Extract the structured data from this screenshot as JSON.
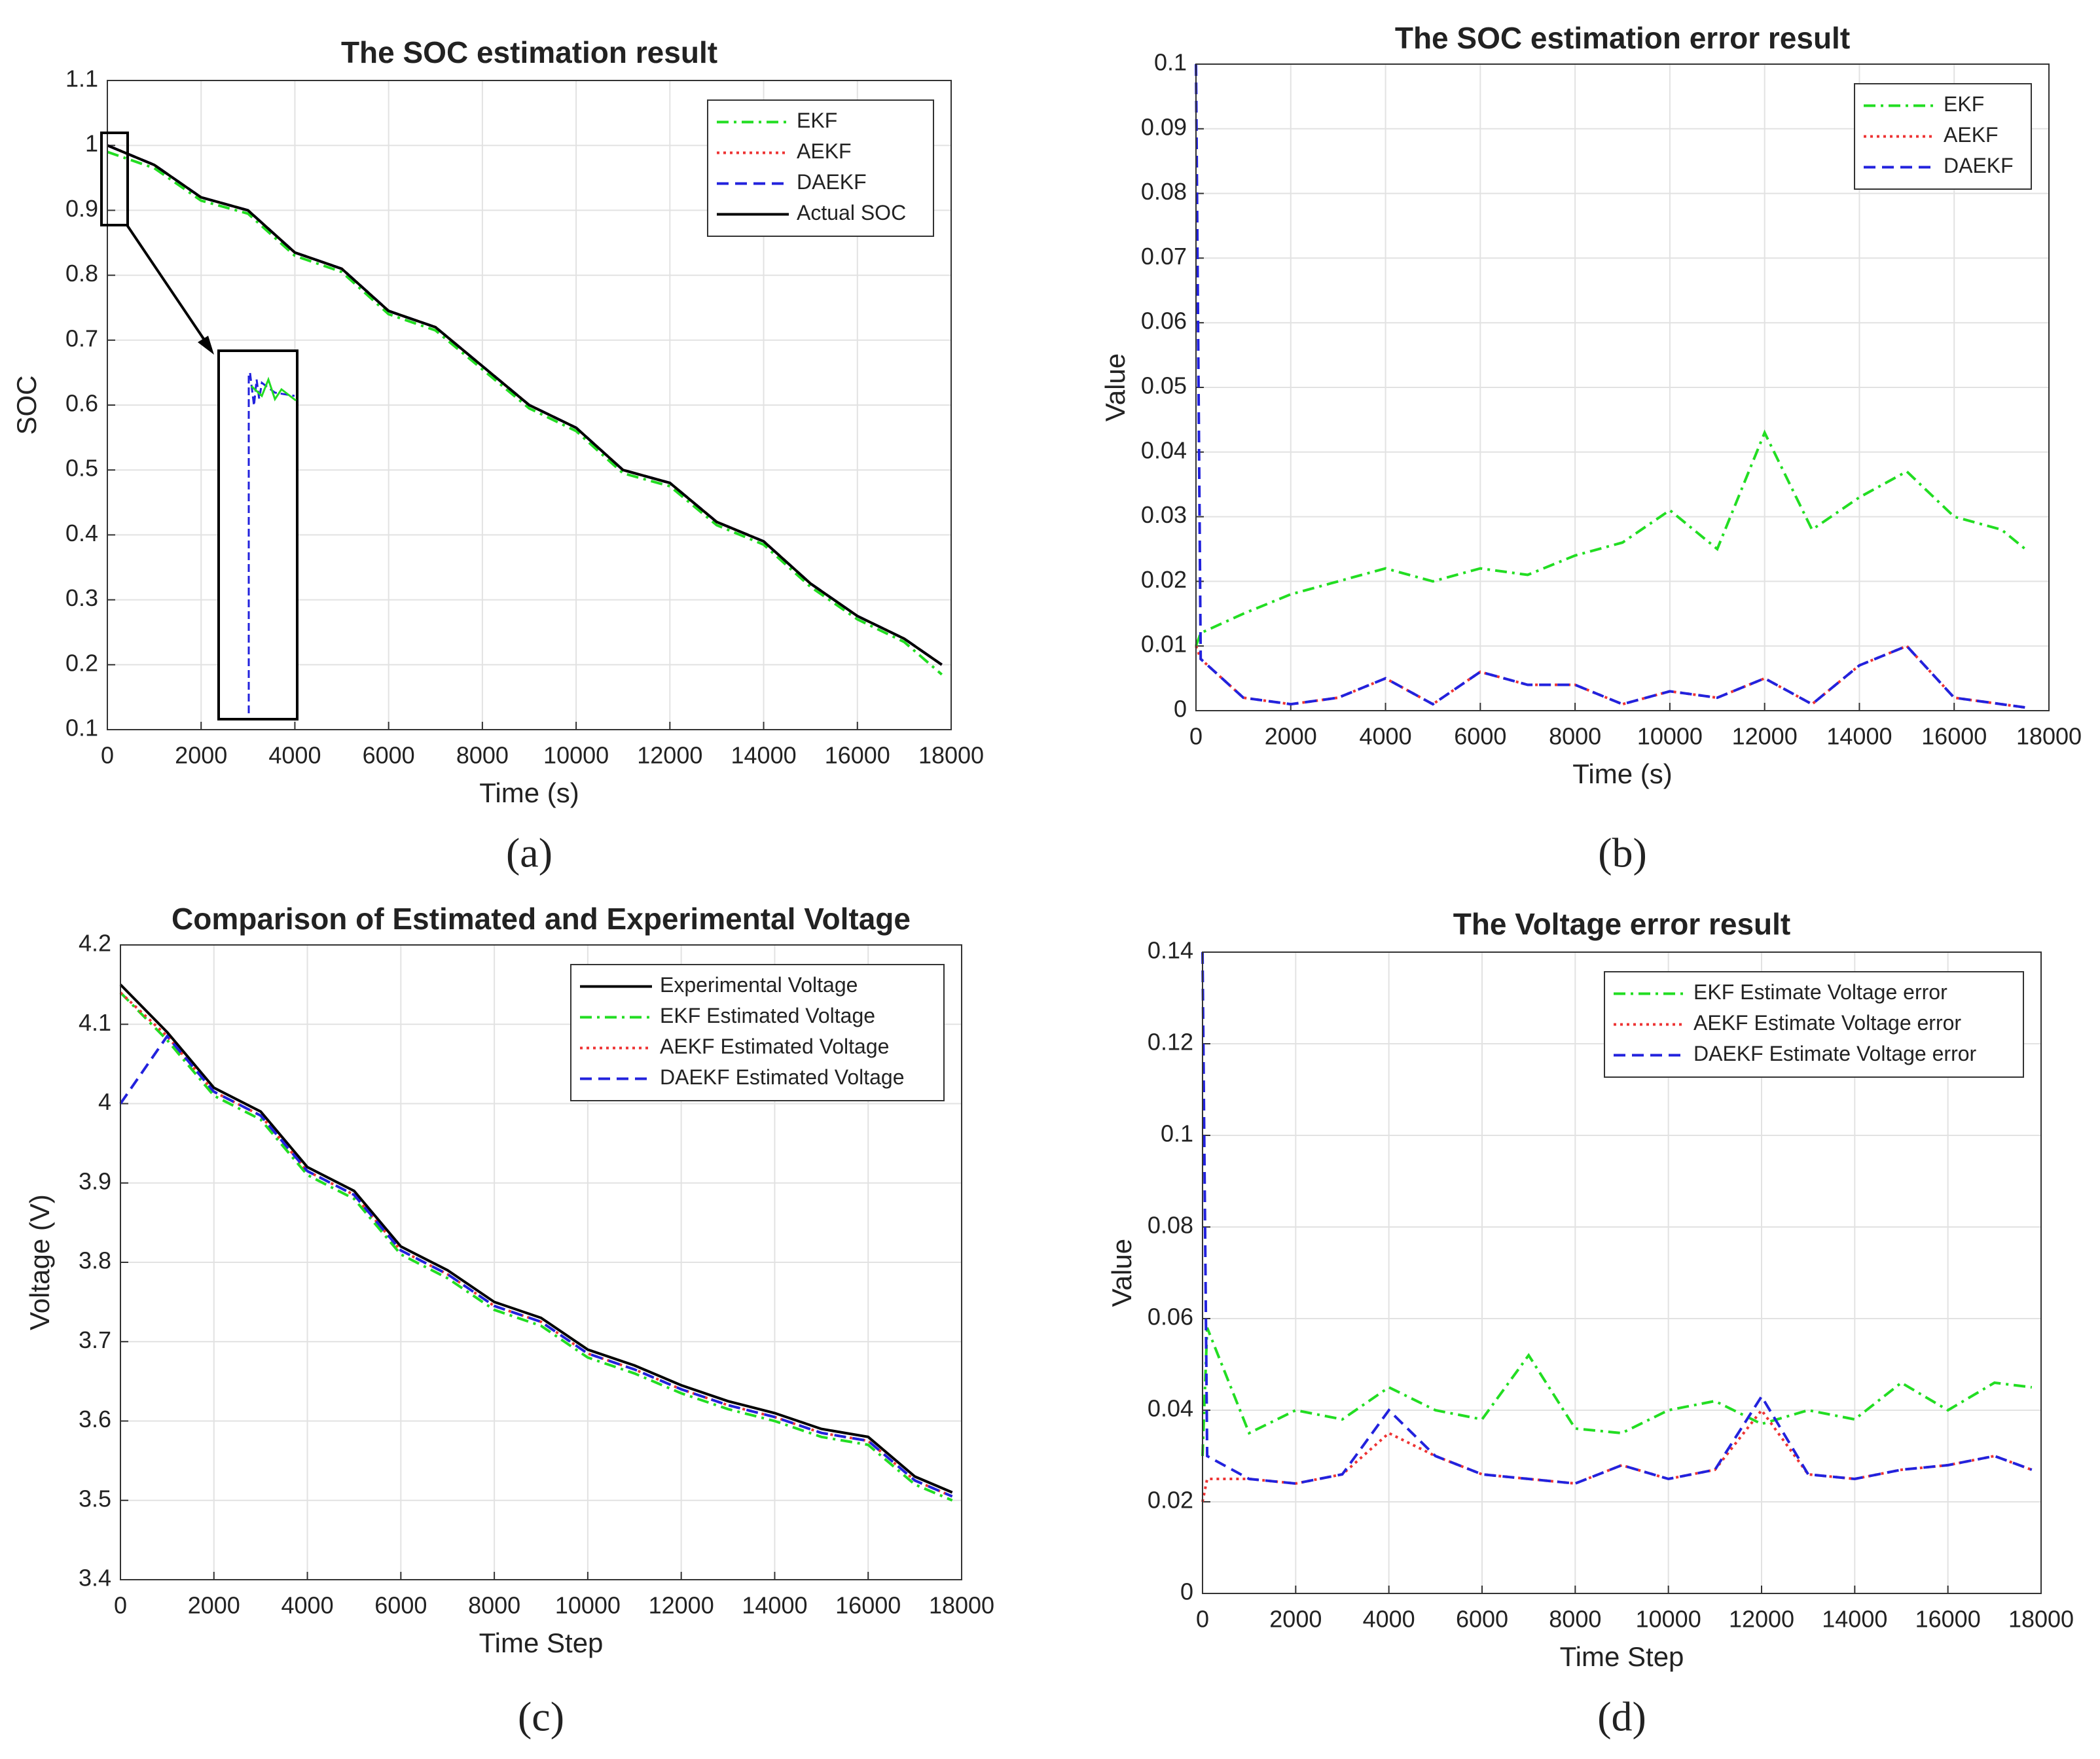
{
  "chart_data": [
    {
      "type": "line",
      "label": "(a)",
      "title": "The SOC estimation result",
      "x_label": "Time (s)",
      "y_label": "SOC",
      "x": [
        0,
        1000,
        2000,
        3000,
        4000,
        5000,
        6000,
        7000,
        8000,
        9000,
        10000,
        11000,
        12000,
        13000,
        14000,
        15000,
        16000,
        17000,
        17800
      ],
      "series": [
        {
          "name": "EKF",
          "color": "#22dd22",
          "style": "dashdot",
          "values": [
            0.99,
            0.965,
            0.915,
            0.895,
            0.83,
            0.805,
            0.74,
            0.715,
            0.655,
            0.595,
            0.56,
            0.495,
            0.475,
            0.415,
            0.385,
            0.32,
            0.27,
            0.235,
            0.185
          ]
        },
        {
          "name": "AEKF",
          "color": "#ee3333",
          "style": "dotted",
          "values": [
            1,
            0.97,
            0.92,
            0.9,
            0.835,
            0.81,
            0.745,
            0.72,
            0.66,
            0.6,
            0.565,
            0.5,
            0.48,
            0.42,
            0.39,
            0.325,
            0.275,
            0.24,
            0.2
          ]
        },
        {
          "name": "DAEKF",
          "color": "#2222dd",
          "style": "dashed",
          "values": [
            1,
            0.97,
            0.92,
            0.9,
            0.835,
            0.81,
            0.745,
            0.72,
            0.66,
            0.6,
            0.565,
            0.5,
            0.48,
            0.42,
            0.39,
            0.325,
            0.275,
            0.24,
            0.2
          ]
        },
        {
          "name": "Actual SOC",
          "color": "#000000",
          "style": "solid",
          "values": [
            1,
            0.97,
            0.92,
            0.9,
            0.835,
            0.81,
            0.745,
            0.72,
            0.66,
            0.6,
            0.565,
            0.5,
            0.48,
            0.42,
            0.39,
            0.325,
            0.275,
            0.24,
            0.2
          ]
        }
      ],
      "xlim": [
        0,
        18000
      ],
      "xticks": [
        0,
        2000,
        4000,
        6000,
        8000,
        10000,
        12000,
        14000,
        16000,
        18000
      ],
      "ylim": [
        0.1,
        1.1
      ],
      "yticks": [
        0.1,
        0.2,
        0.3,
        0.4,
        0.5,
        0.6,
        0.7,
        0.8,
        0.9,
        1,
        1.1
      ],
      "grid": true,
      "legend": "top-right"
    },
    {
      "type": "line",
      "label": "(b)",
      "title": "The SOC estimation error result",
      "x_label": "Time (s)",
      "y_label": "Value",
      "x": [
        0,
        100,
        1000,
        2000,
        3000,
        4000,
        5000,
        6000,
        7000,
        8000,
        9000,
        10000,
        11000,
        12000,
        13000,
        14000,
        15000,
        16000,
        17000,
        17500
      ],
      "series": [
        {
          "name": "EKF",
          "color": "#22dd22",
          "style": "dashdot",
          "values": [
            0.01,
            0.012,
            0.015,
            0.018,
            0.02,
            0.022,
            0.02,
            0.022,
            0.021,
            0.024,
            0.026,
            0.031,
            0.025,
            0.043,
            0.028,
            0.033,
            0.037,
            0.03,
            0.028,
            0.025
          ]
        },
        {
          "name": "AEKF",
          "color": "#ee3333",
          "style": "dotted",
          "values": [
            0.01,
            0.008,
            0.002,
            0.001,
            0.002,
            0.005,
            0.001,
            0.006,
            0.004,
            0.004,
            0.001,
            0.003,
            0.002,
            0.005,
            0.001,
            0.007,
            0.01,
            0.002,
            0.001,
            0.0005
          ]
        },
        {
          "name": "DAEKF",
          "color": "#2222dd",
          "style": "dashed",
          "values": [
            0.1,
            0.008,
            0.002,
            0.001,
            0.002,
            0.005,
            0.001,
            0.006,
            0.004,
            0.004,
            0.001,
            0.003,
            0.002,
            0.005,
            0.001,
            0.007,
            0.01,
            0.002,
            0.001,
            0.0005
          ]
        }
      ],
      "xlim": [
        0,
        18000
      ],
      "xticks": [
        0,
        2000,
        4000,
        6000,
        8000,
        10000,
        12000,
        14000,
        16000,
        18000
      ],
      "ylim": [
        0,
        0.1
      ],
      "yticks": [
        0,
        0.01,
        0.02,
        0.03,
        0.04,
        0.05,
        0.06,
        0.07,
        0.08,
        0.09,
        0.1
      ],
      "grid": true,
      "legend": "top-right"
    },
    {
      "type": "line",
      "label": "(c)",
      "title": "Comparison of Estimated and Experimental Voltage",
      "x_label": "Time Step",
      "y_label": "Voltage (V)",
      "x": [
        0,
        1000,
        2000,
        3000,
        4000,
        5000,
        6000,
        7000,
        8000,
        9000,
        10000,
        11000,
        12000,
        13000,
        14000,
        15000,
        16000,
        17000,
        17800
      ],
      "series": [
        {
          "name": "Experimental Voltage",
          "color": "#000000",
          "style": "solid",
          "values": [
            4.15,
            4.09,
            4.02,
            3.99,
            3.92,
            3.89,
            3.82,
            3.79,
            3.75,
            3.73,
            3.69,
            3.67,
            3.645,
            3.625,
            3.61,
            3.59,
            3.58,
            3.53,
            3.51
          ]
        },
        {
          "name": "EKF Estimated Voltage",
          "color": "#22dd22",
          "style": "dashdot",
          "values": [
            4.14,
            4.08,
            4.01,
            3.98,
            3.91,
            3.88,
            3.81,
            3.78,
            3.74,
            3.72,
            3.68,
            3.66,
            3.635,
            3.615,
            3.6,
            3.58,
            3.57,
            3.52,
            3.5
          ]
        },
        {
          "name": "AEKF Estimated Voltage",
          "color": "#ee3333",
          "style": "dotted",
          "values": [
            4.14,
            4.085,
            4.015,
            3.985,
            3.915,
            3.885,
            3.815,
            3.785,
            3.745,
            3.725,
            3.685,
            3.665,
            3.64,
            3.62,
            3.605,
            3.585,
            3.575,
            3.525,
            3.505
          ]
        },
        {
          "name": "DAEKF Estimated Voltage",
          "color": "#2222dd",
          "style": "dashed",
          "values": [
            4,
            4.085,
            4.015,
            3.985,
            3.915,
            3.885,
            3.815,
            3.785,
            3.745,
            3.725,
            3.685,
            3.665,
            3.64,
            3.62,
            3.605,
            3.585,
            3.575,
            3.525,
            3.505
          ]
        }
      ],
      "xlim": [
        0,
        18000
      ],
      "xticks": [
        0,
        2000,
        4000,
        6000,
        8000,
        10000,
        12000,
        14000,
        16000,
        18000
      ],
      "ylim": [
        3.4,
        4.2
      ],
      "yticks": [
        3.4,
        3.5,
        3.6,
        3.7,
        3.8,
        3.9,
        4,
        4.1,
        4.2
      ],
      "grid": true,
      "legend": "top-right"
    },
    {
      "type": "line",
      "label": "(d)",
      "title": "The Voltage error result",
      "x_label": "Time Step",
      "y_label": "Value",
      "x": [
        0,
        100,
        1000,
        2000,
        3000,
        4000,
        5000,
        6000,
        7000,
        8000,
        9000,
        10000,
        11000,
        12000,
        13000,
        14000,
        15000,
        16000,
        17000,
        17800
      ],
      "series": [
        {
          "name": "EKF Estimate Voltage error",
          "color": "#22dd22",
          "style": "dashdot",
          "values": [
            0.03,
            0.058,
            0.035,
            0.04,
            0.038,
            0.045,
            0.04,
            0.038,
            0.052,
            0.036,
            0.035,
            0.04,
            0.042,
            0.037,
            0.04,
            0.038,
            0.046,
            0.04,
            0.046,
            0.045
          ]
        },
        {
          "name": "AEKF Estimate Voltage error",
          "color": "#ee3333",
          "style": "dotted",
          "values": [
            0.02,
            0.025,
            0.025,
            0.024,
            0.026,
            0.035,
            0.03,
            0.026,
            0.025,
            0.024,
            0.028,
            0.025,
            0.027,
            0.04,
            0.026,
            0.025,
            0.027,
            0.028,
            0.03,
            0.027
          ]
        },
        {
          "name": "DAEKF Estimate Voltage error",
          "color": "#2222dd",
          "style": "dashed",
          "values": [
            0.14,
            0.03,
            0.025,
            0.024,
            0.026,
            0.04,
            0.03,
            0.026,
            0.025,
            0.024,
            0.028,
            0.025,
            0.027,
            0.043,
            0.026,
            0.025,
            0.027,
            0.028,
            0.03,
            0.027
          ]
        }
      ],
      "xlim": [
        0,
        18000
      ],
      "xticks": [
        0,
        2000,
        4000,
        6000,
        8000,
        10000,
        12000,
        14000,
        16000,
        18000
      ],
      "ylim": [
        0,
        0.14
      ],
      "yticks": [
        0,
        0.02,
        0.04,
        0.06,
        0.08,
        0.1,
        0.12,
        0.14
      ],
      "grid": true,
      "legend": "top-right"
    }
  ]
}
